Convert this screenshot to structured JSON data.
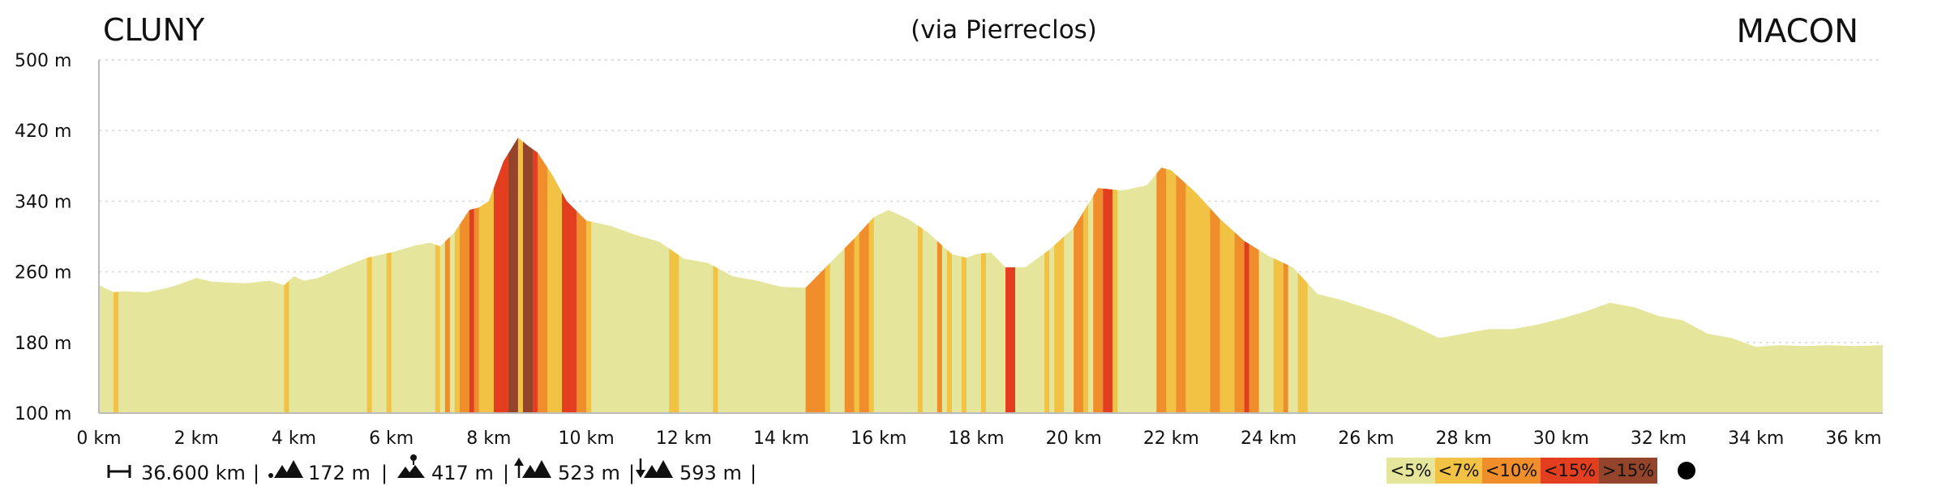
{
  "chart_data": {
    "type": "area",
    "title_left": "CLUNY",
    "title_center": "(via Pierreclos)",
    "title_right": "MACON",
    "xlabel": "",
    "ylabel": "",
    "xlim": [
      0,
      36.6
    ],
    "ylim": [
      100,
      500
    ],
    "x_ticks": [
      0,
      2,
      4,
      6,
      8,
      10,
      12,
      14,
      16,
      18,
      20,
      22,
      24,
      26,
      28,
      30,
      32,
      34,
      36
    ],
    "x_tick_labels": [
      "0 km",
      "2 km",
      "4 km",
      "6 km",
      "8 km",
      "10 km",
      "12 km",
      "14 km",
      "16 km",
      "18 km",
      "20 km",
      "22 km",
      "24 km",
      "26 km",
      "28 km",
      "30 km",
      "32 km",
      "34 km",
      "36 km"
    ],
    "y_ticks": [
      100,
      180,
      260,
      340,
      420,
      500
    ],
    "y_tick_labels": [
      "100 m",
      "180 m",
      "260 m",
      "340 m",
      "420 m",
      "500 m"
    ],
    "grid": "horizontal-dotted",
    "profile": {
      "x": [
        0,
        0.3,
        0.5,
        1,
        1.5,
        2,
        2.3,
        2.6,
        3,
        3.5,
        3.8,
        4,
        4.2,
        4.5,
        5,
        5.5,
        6,
        6.5,
        6.8,
        7,
        7.3,
        7.6,
        7.8,
        8,
        8.3,
        8.6,
        8.8,
        9,
        9.3,
        9.6,
        10,
        10.5,
        11,
        11.5,
        12,
        12.5,
        13,
        13.5,
        14,
        14.5,
        15,
        15.5,
        15.9,
        16.2,
        16.6,
        17,
        17.5,
        17.8,
        18,
        18.3,
        18.6,
        19,
        19.5,
        20,
        20.5,
        21,
        21.5,
        21.8,
        22,
        22.5,
        23,
        23.5,
        24,
        24.5,
        25,
        25.5,
        26,
        26.5,
        27,
        27.5,
        28,
        28.5,
        29,
        29.5,
        30,
        30.5,
        31,
        31.5,
        32,
        32.5,
        33,
        33.5,
        34,
        34.5,
        35,
        35.5,
        36,
        36.6
      ],
      "y": [
        245,
        237,
        238,
        237,
        243,
        253,
        249,
        248,
        247,
        250,
        245,
        255,
        250,
        253,
        265,
        276,
        282,
        290,
        293,
        289,
        305,
        330,
        333,
        340,
        385,
        412,
        403,
        395,
        370,
        340,
        318,
        312,
        302,
        294,
        275,
        270,
        255,
        250,
        243,
        242,
        270,
        298,
        322,
        330,
        320,
        305,
        280,
        276,
        280,
        282,
        265,
        265,
        285,
        310,
        355,
        352,
        358,
        378,
        375,
        350,
        320,
        295,
        278,
        265,
        235,
        228,
        219,
        210,
        198,
        185,
        190,
        195,
        195,
        200,
        207,
        215,
        225,
        220,
        210,
        205,
        190,
        185,
        175,
        177,
        176,
        177,
        176,
        177
      ]
    },
    "gradient_bands": [
      {
        "x0": 0.3,
        "x1": 0.4,
        "class": "<7%"
      },
      {
        "x0": 3.8,
        "x1": 3.9,
        "class": "<7%"
      },
      {
        "x0": 5.5,
        "x1": 5.6,
        "class": "<7%"
      },
      {
        "x0": 5.9,
        "x1": 6.0,
        "class": "<7%"
      },
      {
        "x0": 6.9,
        "x1": 7.0,
        "class": "<7%"
      },
      {
        "x0": 7.1,
        "x1": 7.2,
        "class": "<10%"
      },
      {
        "x0": 7.3,
        "x1": 7.4,
        "class": "<7%"
      },
      {
        "x0": 7.4,
        "x1": 7.6,
        "class": "<10%"
      },
      {
        "x0": 7.6,
        "x1": 7.7,
        "class": "<15%"
      },
      {
        "x0": 7.7,
        "x1": 7.8,
        "class": "<10%"
      },
      {
        "x0": 7.8,
        "x1": 8.1,
        "class": "<7%"
      },
      {
        "x0": 8.1,
        "x1": 8.4,
        "class": "<15%"
      },
      {
        "x0": 8.4,
        "x1": 8.6,
        "class": ">15%"
      },
      {
        "x0": 8.6,
        "x1": 8.7,
        "class": "<7%"
      },
      {
        "x0": 8.7,
        "x1": 8.9,
        "class": ">15%"
      },
      {
        "x0": 8.9,
        "x1": 9.0,
        "class": "<15%"
      },
      {
        "x0": 9.0,
        "x1": 9.2,
        "class": "<10%"
      },
      {
        "x0": 9.2,
        "x1": 9.5,
        "class": "<7%"
      },
      {
        "x0": 9.5,
        "x1": 9.8,
        "class": "<15%"
      },
      {
        "x0": 9.8,
        "x1": 10.0,
        "class": "<10%"
      },
      {
        "x0": 10.0,
        "x1": 10.1,
        "class": "<7%"
      },
      {
        "x0": 11.7,
        "x1": 11.9,
        "class": "<7%"
      },
      {
        "x0": 12.6,
        "x1": 12.7,
        "class": "<7%"
      },
      {
        "x0": 14.5,
        "x1": 14.9,
        "class": "<10%"
      },
      {
        "x0": 14.9,
        "x1": 15.0,
        "class": "<7%"
      },
      {
        "x0": 15.3,
        "x1": 15.5,
        "class": "<10%"
      },
      {
        "x0": 15.5,
        "x1": 15.6,
        "class": "<7%"
      },
      {
        "x0": 15.6,
        "x1": 15.8,
        "class": "<10%"
      },
      {
        "x0": 15.8,
        "x1": 15.9,
        "class": "<7%"
      },
      {
        "x0": 16.8,
        "x1": 16.9,
        "class": "<7%"
      },
      {
        "x0": 17.2,
        "x1": 17.3,
        "class": "<10%"
      },
      {
        "x0": 17.4,
        "x1": 17.5,
        "class": "<7%"
      },
      {
        "x0": 17.7,
        "x1": 17.8,
        "class": "<7%"
      },
      {
        "x0": 18.1,
        "x1": 18.2,
        "class": "<7%"
      },
      {
        "x0": 18.6,
        "x1": 18.8,
        "class": "<15%"
      },
      {
        "x0": 19.4,
        "x1": 19.5,
        "class": "<7%"
      },
      {
        "x0": 19.6,
        "x1": 19.8,
        "class": "<7%"
      },
      {
        "x0": 20.0,
        "x1": 20.2,
        "class": "<10%"
      },
      {
        "x0": 20.2,
        "x1": 20.3,
        "class": "<7%"
      },
      {
        "x0": 20.4,
        "x1": 20.6,
        "class": "<10%"
      },
      {
        "x0": 20.6,
        "x1": 20.8,
        "class": "<15%"
      },
      {
        "x0": 20.8,
        "x1": 20.9,
        "class": "<7%"
      },
      {
        "x0": 21.7,
        "x1": 21.9,
        "class": "<10%"
      },
      {
        "x0": 21.9,
        "x1": 22.1,
        "class": "<7%"
      },
      {
        "x0": 22.1,
        "x1": 22.3,
        "class": "<10%"
      },
      {
        "x0": 22.3,
        "x1": 22.8,
        "class": "<7%"
      },
      {
        "x0": 22.8,
        "x1": 23.0,
        "class": "<10%"
      },
      {
        "x0": 23.0,
        "x1": 23.3,
        "class": "<7%"
      },
      {
        "x0": 23.3,
        "x1": 23.5,
        "class": "<10%"
      },
      {
        "x0": 23.5,
        "x1": 23.6,
        "class": "<15%"
      },
      {
        "x0": 23.6,
        "x1": 23.8,
        "class": "<10%"
      },
      {
        "x0": 24.1,
        "x1": 24.3,
        "class": "<7%"
      },
      {
        "x0": 24.3,
        "x1": 24.4,
        "class": "<10%"
      },
      {
        "x0": 24.6,
        "x1": 24.8,
        "class": "<7%"
      }
    ],
    "legend": [
      {
        "label": "<5%",
        "color": "#e5e59b"
      },
      {
        "label": "<7%",
        "color": "#f2c244"
      },
      {
        "label": "<10%",
        "color": "#ef8e2a"
      },
      {
        "label": "<15%",
        "color": "#e33e1f"
      },
      {
        "label": ">15%",
        "color": "#94442a"
      }
    ],
    "legend_placement": "bottom-right",
    "legend_marker": "black-dot",
    "stats": {
      "distance": "36.600 km",
      "min_altitude": "172 m",
      "max_altitude": "417 m",
      "total_ascent": "523 m",
      "total_descent": "593 m"
    },
    "stats_icons": [
      "distance-icon",
      "min-altitude-icon",
      "max-altitude-icon",
      "ascent-icon",
      "descent-icon"
    ]
  }
}
